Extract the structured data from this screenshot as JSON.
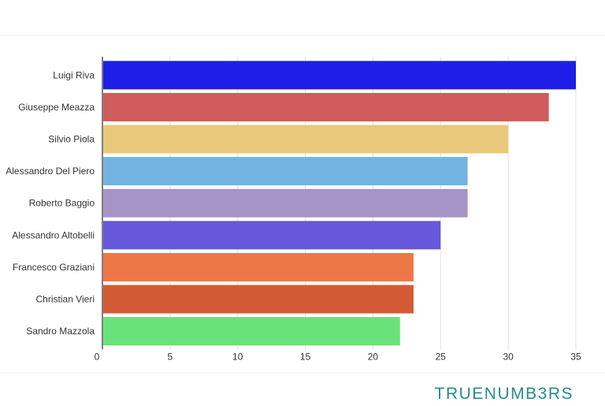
{
  "chart_data": {
    "type": "bar",
    "orientation": "horizontal",
    "title": "",
    "categories": [
      "Luigi Riva",
      "Giuseppe Meazza",
      "Silvio Piola",
      "Alessandro Del Piero",
      "Roberto Baggio",
      "Alessandro Altobelli",
      "Francesco Graziani",
      "Christian Vieri",
      "Sandro Mazzola"
    ],
    "values": [
      35,
      33,
      30,
      27,
      27,
      25,
      23,
      23,
      22
    ],
    "colors": [
      "#1e1ee8",
      "#d05c5c",
      "#e8c87a",
      "#74b4e2",
      "#a694c6",
      "#6658d8",
      "#ee7748",
      "#d45a35",
      "#6ae27a"
    ],
    "xlim": [
      0,
      35
    ],
    "xticks": [
      0,
      5,
      10,
      15,
      20,
      25,
      30,
      35
    ],
    "grid": true,
    "xlabel": "",
    "ylabel": ""
  },
  "brand": {
    "text": "TRUENUMB3RS"
  }
}
